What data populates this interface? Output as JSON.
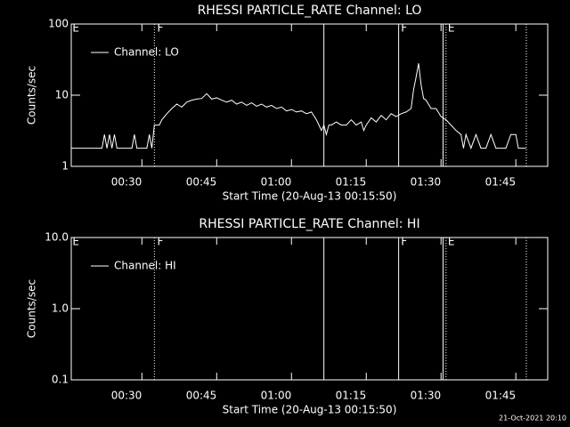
{
  "chart_data": [
    {
      "type": "line",
      "title": "RHESSI PARTICLE_RATE Channel: LO",
      "x_label": "Start Time (20-Aug-13 00:15:50)",
      "y_label": "Counts/sec",
      "log_y": true,
      "xlim": [
        15.83,
        111.4
      ],
      "ylim": [
        1,
        100
      ],
      "xticks": [
        {
          "value": 30,
          "label": "00:30"
        },
        {
          "value": 45,
          "label": "00:45"
        },
        {
          "value": 60,
          "label": "01:00"
        },
        {
          "value": 75,
          "label": "01:15"
        },
        {
          "value": 90,
          "label": "01:30"
        },
        {
          "value": 105,
          "label": "01:45"
        }
      ],
      "yticks": [
        1,
        10,
        100
      ],
      "vlines": [
        {
          "x": 32.5,
          "style": "dotted"
        },
        {
          "x": 66.5,
          "style": "solid"
        },
        {
          "x": 81.5,
          "style": "solid"
        },
        {
          "x": 90.4,
          "style": "solid"
        },
        {
          "x": 91.0,
          "style": "dotted"
        },
        {
          "x": 107.1,
          "style": "dotted"
        }
      ],
      "flags": [
        {
          "x": 15.9,
          "label": "E"
        },
        {
          "x": 32.9,
          "label": "F"
        },
        {
          "x": 81.8,
          "label": "F"
        },
        {
          "x": 91.2,
          "label": "E"
        }
      ],
      "series": [
        {
          "name": "Channel: LO",
          "color": "#ffffff",
          "x": [
            15.83,
            22,
            22.5,
            23,
            23.5,
            24,
            24.5,
            25,
            28,
            28.5,
            29,
            31,
            31.5,
            32,
            32.5,
            33.5,
            34,
            35,
            36,
            37,
            38,
            39,
            40,
            41,
            42,
            43,
            44,
            45,
            46,
            47,
            48,
            49,
            50,
            51,
            52,
            53,
            54,
            55,
            56,
            57,
            58,
            59,
            60,
            61,
            62,
            63,
            64,
            65,
            65.5,
            66,
            66.5,
            67,
            67.5,
            68,
            69,
            70,
            71,
            72,
            73,
            74,
            74.5,
            75,
            76,
            77,
            78,
            79,
            80,
            81,
            82,
            83,
            84,
            84.5,
            85,
            85.5,
            86,
            86.5,
            87,
            88,
            89,
            90,
            91,
            92,
            93,
            94,
            94.5,
            95,
            96,
            97,
            98,
            99,
            100,
            101,
            103,
            104,
            105,
            105.5,
            107
          ],
          "values": [
            1.8,
            1.8,
            2.8,
            1.8,
            2.8,
            1.8,
            2.8,
            1.8,
            1.8,
            2.8,
            1.8,
            1.8,
            2.8,
            1.8,
            3.8,
            3.8,
            4.5,
            5.5,
            6.5,
            7.5,
            6.8,
            8,
            8.5,
            8.8,
            9,
            10.5,
            8.8,
            9.2,
            8.5,
            8,
            8.5,
            7.5,
            8,
            7.2,
            7.8,
            7,
            7.5,
            6.8,
            7.2,
            6.5,
            6.8,
            6,
            6.3,
            5.8,
            6,
            5.5,
            5.8,
            4.5,
            3.8,
            3.2,
            3.8,
            2.8,
            3.8,
            3.8,
            4.2,
            3.8,
            3.8,
            4.5,
            3.8,
            4.2,
            3.2,
            3.8,
            4.8,
            4.2,
            5.2,
            4.5,
            5.5,
            5,
            5.5,
            5.8,
            6.5,
            12,
            18,
            28,
            14,
            9,
            8.5,
            6.5,
            6.5,
            5,
            4.5,
            3.8,
            3.2,
            2.8,
            1.8,
            2.8,
            1.8,
            2.8,
            1.8,
            1.8,
            2.8,
            1.8,
            1.8,
            2.8,
            2.8,
            1.8,
            1.8
          ]
        }
      ]
    },
    {
      "type": "line",
      "title": "RHESSI PARTICLE_RATE Channel: HI",
      "x_label": "Start Time (20-Aug-13 00:15:50)",
      "y_label": "Counts/sec",
      "log_y": true,
      "xlim": [
        15.83,
        111.4
      ],
      "ylim": [
        0.1,
        10
      ],
      "xticks": [
        {
          "value": 30,
          "label": "00:30"
        },
        {
          "value": 45,
          "label": "00:45"
        },
        {
          "value": 60,
          "label": "01:00"
        },
        {
          "value": 75,
          "label": "01:15"
        },
        {
          "value": 90,
          "label": "01:30"
        },
        {
          "value": 105,
          "label": "01:45"
        }
      ],
      "yticks": [
        0.1,
        {
          "value": 1,
          "label": "1.0"
        },
        {
          "value": 10,
          "label": "10.0"
        }
      ],
      "vlines": [
        {
          "x": 32.5,
          "style": "dotted"
        },
        {
          "x": 66.5,
          "style": "solid"
        },
        {
          "x": 81.5,
          "style": "solid"
        },
        {
          "x": 90.4,
          "style": "solid"
        },
        {
          "x": 91.0,
          "style": "dotted"
        },
        {
          "x": 107.1,
          "style": "dotted"
        }
      ],
      "flags": [
        {
          "x": 15.9,
          "label": "E"
        },
        {
          "x": 32.9,
          "label": "F"
        },
        {
          "x": 81.8,
          "label": "F"
        },
        {
          "x": 91.2,
          "label": "E"
        }
      ],
      "series": [
        {
          "name": "Channel: HI",
          "color": "#ffffff",
          "x": [],
          "values": []
        }
      ]
    }
  ],
  "footer": "21-Oct-2021 20:10"
}
